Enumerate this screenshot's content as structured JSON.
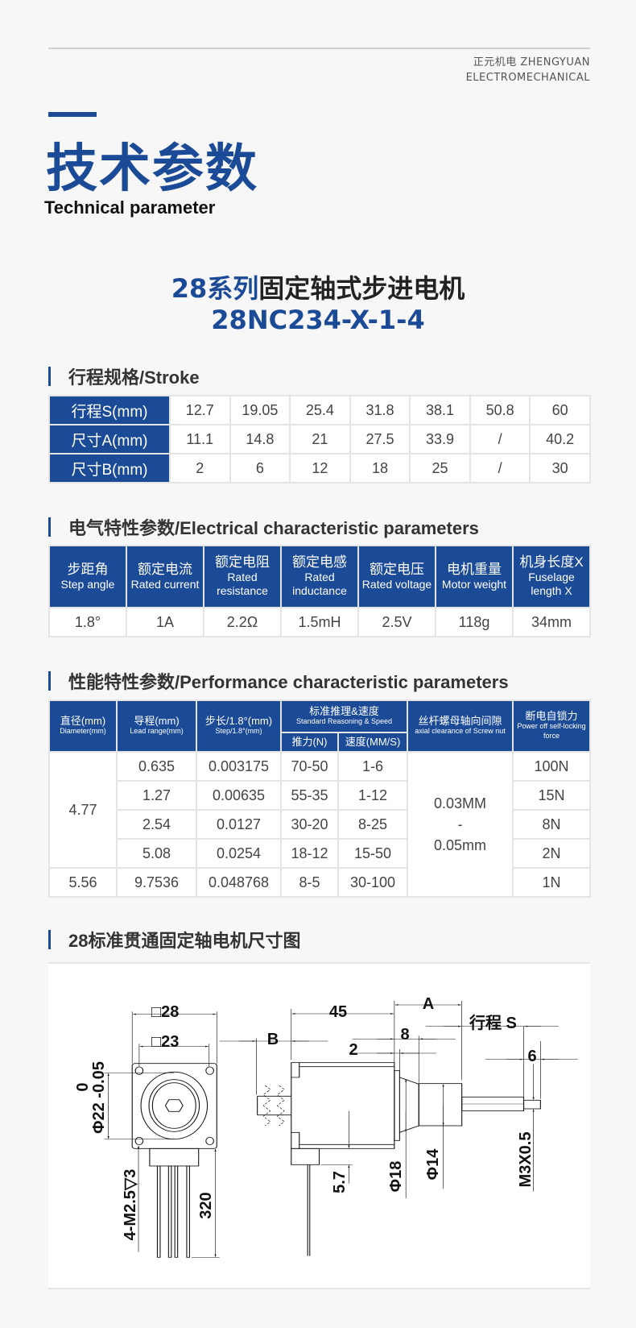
{
  "brand": {
    "line1": "正元机电 ZHENGYUAN",
    "line2": "ELECTROMECHANICAL"
  },
  "header": {
    "title_cn": "技术参数",
    "title_en": "Technical parameter"
  },
  "product": {
    "series_blue": "28系列",
    "series_dark": "固定轴式步进电机",
    "model": "28NC234-X-1-4"
  },
  "accent_color": "#1b4a97",
  "stroke": {
    "heading": "行程规格/Stroke",
    "rows": [
      {
        "label": "行程S(mm)",
        "values": [
          "12.7",
          "19.05",
          "25.4",
          "31.8",
          "38.1",
          "50.8",
          "60"
        ]
      },
      {
        "label": "尺寸A(mm)",
        "values": [
          "11.1",
          "14.8",
          "21",
          "27.5",
          "33.9",
          "/",
          "40.2"
        ]
      },
      {
        "label": "尺寸B(mm)",
        "values": [
          "2",
          "6",
          "12",
          "18",
          "25",
          "/",
          "30"
        ]
      }
    ]
  },
  "electrical": {
    "heading": "电气特性参数/Electrical characteristic parameters",
    "headers": [
      {
        "cn": "步距角",
        "en": "Step angle"
      },
      {
        "cn": "额定电流",
        "en": "Rated current"
      },
      {
        "cn": "额定电阻",
        "en": "Rated resistance"
      },
      {
        "cn": "额定电感",
        "en": "Rated inductance"
      },
      {
        "cn": "额定电压",
        "en": "Rated voltage"
      },
      {
        "cn": "电机重量",
        "en": "Motor weight"
      },
      {
        "cn": "机身长度X",
        "en": "Fuselage length X"
      }
    ],
    "values": [
      "1.8°",
      "1A",
      "2.2Ω",
      "1.5mH",
      "2.5V",
      "118g",
      "34mm"
    ]
  },
  "performance": {
    "heading": "性能特性参数/Performance characteristic parameters",
    "headers": {
      "diameter": {
        "cn": "直径(mm)",
        "en": "Diameter(mm)"
      },
      "lead": {
        "cn": "导程(mm)",
        "en": "Lead range(mm)"
      },
      "step": {
        "cn": "步长/1.8°(mm)",
        "en": "Step/1.8°(mm)"
      },
      "std": {
        "cn": "标准推理&速度",
        "en": "Standard Reasoning & Speed"
      },
      "thrust": "推力(N)",
      "speed": "速度(MM/S)",
      "clearance": {
        "cn": "丝杆螺母轴向间隙",
        "en": "axial clearance of Screw  nut"
      },
      "lock": {
        "cn": "断电自锁力",
        "en": "Power off self-locking force"
      }
    },
    "diameters": [
      "4.77",
      "5.56"
    ],
    "clearance": {
      "line1": "0.03MM",
      "line2": "-",
      "line3": "0.05mm"
    },
    "rows": [
      {
        "lead": "0.635",
        "step": "0.003175",
        "thrust": "70-50",
        "speed": "1-6",
        "lock": "100N"
      },
      {
        "lead": "1.27",
        "step": "0.00635",
        "thrust": "55-35",
        "speed": "1-12",
        "lock": "15N"
      },
      {
        "lead": "2.54",
        "step": "0.0127",
        "thrust": "30-20",
        "speed": "8-25",
        "lock": "8N"
      },
      {
        "lead": "5.08",
        "step": "0.0254",
        "thrust": "18-12",
        "speed": "15-50",
        "lock": "2N"
      },
      {
        "lead": "9.7536",
        "step": "0.048768",
        "thrust": "8-5",
        "speed": "30-100",
        "lock": "1N"
      }
    ]
  },
  "drawing": {
    "heading": "28标准贯通固定轴电机尺寸图",
    "labels": {
      "sq28": "□28",
      "sq23": "□23",
      "tol_upper": "0",
      "dia22": "Φ22 -0.05",
      "holes": "4-M2.5▽3",
      "lead_len": "320",
      "len45": "45",
      "A": "A",
      "stroke": "行程 S",
      "B": "B",
      "d2": "2",
      "d8": "8",
      "d6": "6",
      "d57": "5.7",
      "dia18": "Φ18",
      "dia14": "Φ14",
      "thread": "M3X0.5"
    }
  }
}
